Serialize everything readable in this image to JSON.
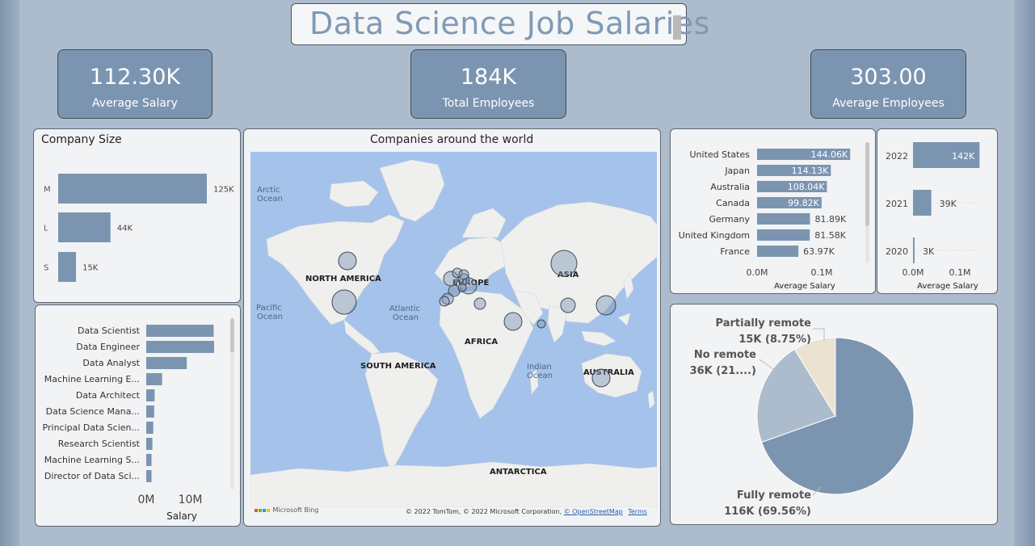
{
  "title": "Data Science Job Salaries",
  "kpis": [
    {
      "value": "112.30K",
      "label": "Average Salary"
    },
    {
      "value": "184K",
      "label": "Total Employees"
    },
    {
      "value": "303.00",
      "label": "Average Employees"
    }
  ],
  "colors": {
    "bar": "#7b95b1",
    "accent_dark": "#3f4b59",
    "pie_light": "#adbccc",
    "pie_beige": "#ebe2d2",
    "ocean": "#a5c2ea",
    "land": "#efefee"
  },
  "company_size": {
    "title": "Company Size",
    "categories": [
      "M",
      "L",
      "S"
    ],
    "values": [
      125,
      44,
      15
    ],
    "labels": [
      "125K",
      "44K",
      "15K"
    ]
  },
  "map": {
    "title": "Companies around the world",
    "labels": {
      "north_america": "NORTH AMERICA",
      "south_america": "SOUTH AMERICA",
      "europe": "EUROPE",
      "africa": "AFRICA",
      "asia": "ASIA",
      "australia": "AUSTRALIA",
      "antarctica": "ANTARCTICA",
      "arctic_1": "Arctic",
      "arctic_2": "Ocean",
      "pacific_1": "Pacific",
      "pacific_2": "Ocean",
      "atlantic_1": "Atlantic",
      "atlantic_2": "Ocean",
      "indian_1": "Indian",
      "indian_2": "Ocean"
    },
    "bing": "Microsoft Bing",
    "credit": "© 2022 TomTom, © 2022 Microsoft Corporation,",
    "osm": "© OpenStreetMap",
    "terms": "Terms"
  },
  "chart_data": [
    {
      "type": "bar",
      "title": "Company Size",
      "categories": [
        "M",
        "L",
        "S"
      ],
      "values": [
        125000,
        44000,
        15000
      ],
      "data_labels": [
        "125K",
        "44K",
        "15K"
      ]
    },
    {
      "type": "bar",
      "title": "",
      "xlabel": "Salary",
      "categories": [
        "Data Scientist",
        "Data Engineer",
        "Data Analyst",
        "Machine Learning E...",
        "Data Architect",
        "Data Science Mana...",
        "Principal Data Scien...",
        "Research Scientist",
        "Machine Learning S...",
        "Director of Data Sci..."
      ],
      "values": [
        15300000,
        15400000,
        9200000,
        3600000,
        1900000,
        1800000,
        1600000,
        1400000,
        1200000,
        1200000
      ],
      "ticks": [
        "0M",
        "10M"
      ]
    },
    {
      "type": "bar",
      "xlabel": "Average Salary",
      "categories": [
        "United States",
        "Japan",
        "Australia",
        "Canada",
        "Germany",
        "United Kingdom",
        "France"
      ],
      "values": [
        144060,
        114130,
        108040,
        99820,
        81890,
        81580,
        63970
      ],
      "data_labels": [
        "144.06K",
        "114.13K",
        "108.04K",
        "99.82K",
        "81.89K",
        "81.58K",
        "63.97K"
      ],
      "ticks": [
        "0.0M",
        "0.1M"
      ]
    },
    {
      "type": "bar",
      "xlabel": "Average Salary",
      "categories": [
        "2022",
        "2021",
        "2020"
      ],
      "values": [
        142000,
        39000,
        3000
      ],
      "data_labels": [
        "142K",
        "39K",
        "3K"
      ],
      "ticks": [
        "0.0M",
        "0.1M"
      ]
    },
    {
      "type": "pie",
      "slices": [
        {
          "name": "Fully remote",
          "value": 116000,
          "percent": 69.56,
          "label": "116K (69.56%)"
        },
        {
          "name": "No remote",
          "value": 36000,
          "percent": 21.69,
          "label": "36K (21....)"
        },
        {
          "name": "Partially remote",
          "value": 15000,
          "percent": 8.75,
          "label": "15K (8.75%)"
        }
      ]
    }
  ],
  "job_title": {
    "categories": [
      "Data Scientist",
      "Data Engineer",
      "Data Analyst",
      "Machine Learning E...",
      "Data Architect",
      "Data Science Mana...",
      "Principal Data Scien...",
      "Research Scientist",
      "Machine Learning S...",
      "Director of Data Sci..."
    ],
    "values": [
      15.3,
      15.4,
      9.2,
      3.6,
      1.9,
      1.8,
      1.6,
      1.4,
      1.2,
      1.2
    ],
    "ticks": [
      "0M",
      "10M"
    ],
    "xlabel": "Salary"
  },
  "country": {
    "categories": [
      "United States",
      "Japan",
      "Australia",
      "Canada",
      "Germany",
      "United Kingdom",
      "France"
    ],
    "values": [
      144.06,
      114.13,
      108.04,
      99.82,
      81.89,
      81.58,
      63.97
    ],
    "labels": [
      "144.06K",
      "114.13K",
      "108.04K",
      "99.82K",
      "81.89K",
      "81.58K",
      "63.97K"
    ],
    "ticks": [
      "0.0M",
      "0.1M"
    ],
    "xlabel": "Average Salary"
  },
  "year": {
    "categories": [
      "2022",
      "2021",
      "2020"
    ],
    "values": [
      142,
      39,
      3
    ],
    "labels": [
      "142K",
      "39K",
      "3K"
    ],
    "ticks": [
      "0.0M",
      "0.1M"
    ],
    "xlabel": "Average Salary"
  },
  "remote": {
    "slices": [
      {
        "name": "Fully remote",
        "label": "116K (69.56%)",
        "percent": 69.56
      },
      {
        "name": "No remote",
        "label": "36K (21....)",
        "percent": 21.69
      },
      {
        "name": "Partially remote",
        "label": "15K (8.75%)",
        "percent": 8.75
      }
    ]
  }
}
